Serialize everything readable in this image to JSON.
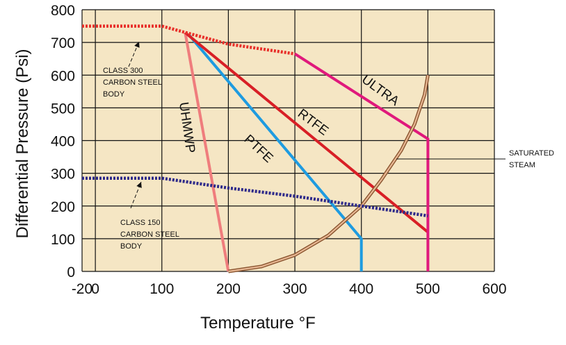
{
  "chart_data": {
    "type": "line",
    "xlabel": "Temperature °F",
    "ylabel": "Differential Pressure (Psi)",
    "xlim": [
      -20,
      600
    ],
    "ylim": [
      0,
      800
    ],
    "x_ticks": [
      -20,
      0,
      100,
      200,
      300,
      400,
      500,
      600
    ],
    "y_ticks": [
      0,
      100,
      200,
      300,
      400,
      500,
      600,
      700,
      800
    ],
    "grid": true,
    "background_color": "#f5e6c4",
    "series": [
      {
        "name": "UHMWP",
        "color": "#ef7d7d",
        "dashed": false,
        "points": [
          [
            135,
            730
          ],
          [
            200,
            0
          ]
        ]
      },
      {
        "name": "PTFE",
        "color": "#1e9be0",
        "dashed": false,
        "points": [
          [
            140,
            725
          ],
          [
            400,
            100
          ],
          [
            400,
            0
          ]
        ]
      },
      {
        "name": "RTFE",
        "color": "#d81f26",
        "dashed": false,
        "points": [
          [
            135,
            730
          ],
          [
            500,
            120
          ]
        ]
      },
      {
        "name": "ULTRA",
        "color": "#e0197c",
        "dashed": false,
        "points": [
          [
            300,
            665
          ],
          [
            500,
            405
          ],
          [
            500,
            0
          ]
        ]
      },
      {
        "name": "SATURATED STEAM",
        "color": "#b8744a",
        "dashed": false,
        "points": [
          [
            200,
            0
          ],
          [
            250,
            15
          ],
          [
            300,
            50
          ],
          [
            350,
            110
          ],
          [
            400,
            200
          ],
          [
            430,
            280
          ],
          [
            460,
            370
          ],
          [
            480,
            450
          ],
          [
            495,
            540
          ],
          [
            500,
            600
          ]
        ]
      },
      {
        "name": "CLASS 300 CARBON STEEL BODY",
        "color": "#e8302a",
        "dashed": true,
        "points": [
          [
            -20,
            750
          ],
          [
            100,
            750
          ],
          [
            200,
            695
          ],
          [
            300,
            665
          ]
        ]
      },
      {
        "name": "CLASS 150 CARBON STEEL BODY",
        "color": "#2e2a8a",
        "dashed": true,
        "points": [
          [
            -20,
            285
          ],
          [
            100,
            285
          ],
          [
            200,
            255
          ],
          [
            300,
            230
          ],
          [
            400,
            200
          ],
          [
            500,
            170
          ]
        ]
      }
    ],
    "annotations": [
      {
        "lines": [
          "CLASS 300",
          "CARBON STEEL",
          "BODY"
        ],
        "points_to": "CLASS 300 CARBON STEEL BODY"
      },
      {
        "lines": [
          "CLASS 150",
          "CARBON STEEL",
          "BODY"
        ],
        "points_to": "CLASS 150 CARBON STEEL BODY"
      },
      {
        "lines": [
          "SATURATED",
          "STEAM"
        ],
        "points_to": "SATURATED STEAM"
      }
    ],
    "series_labels": [
      "UHMWP",
      "PTFE",
      "RTFE",
      "ULTRA"
    ]
  }
}
